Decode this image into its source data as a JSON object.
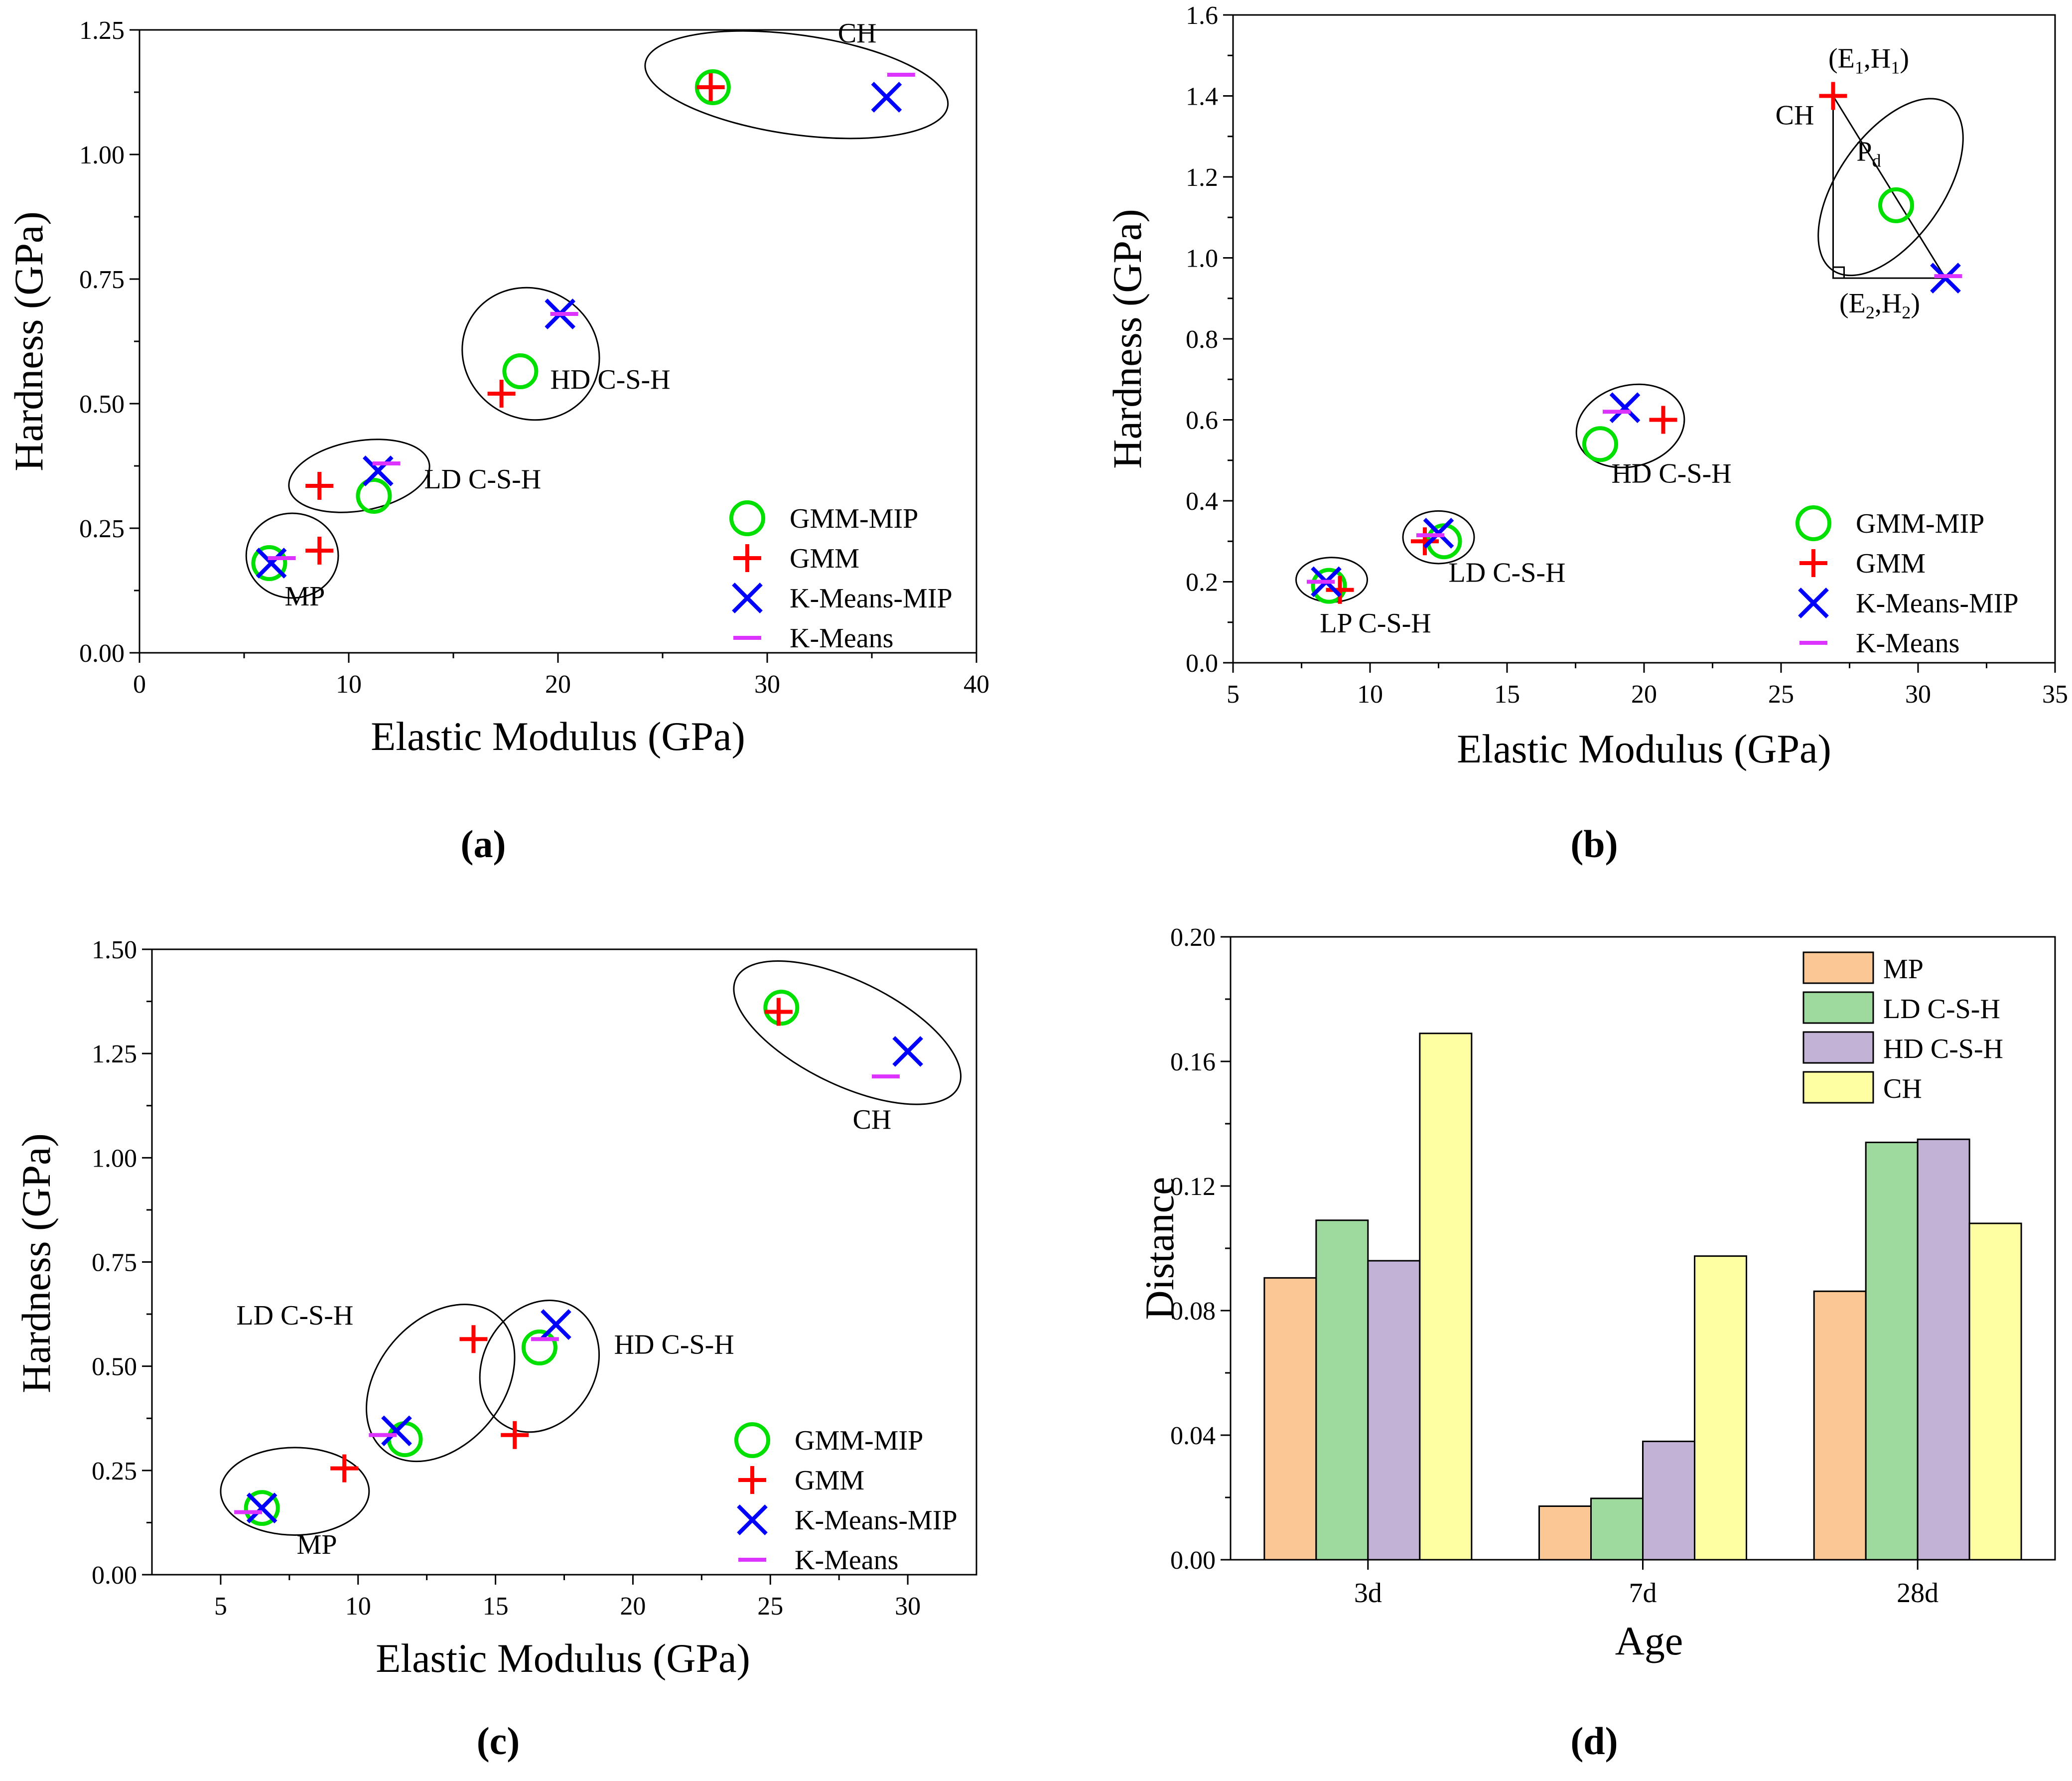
{
  "chart_data": [
    {
      "id": "a",
      "type": "scatter",
      "caption": "(a)",
      "xlabel": "Elastic Modulus (GPa)",
      "ylabel": "Hardness (GPa)",
      "xlim": [
        0,
        40
      ],
      "ylim": [
        0,
        1.25
      ],
      "xticks": [
        0,
        10,
        20,
        30,
        40
      ],
      "yticks": [
        0,
        0.25,
        0.5,
        0.75,
        1.0,
        1.25
      ],
      "ytick_decimals": 2,
      "legend_position": "bottom-right",
      "series": [
        {
          "name": "GMM-MIP",
          "marker": "circle",
          "color": "#00e000",
          "points": [
            [
              6.2,
              0.18
            ],
            [
              11.2,
              0.315
            ],
            [
              18.2,
              0.565
            ],
            [
              27.4,
              1.135
            ]
          ]
        },
        {
          "name": "GMM",
          "marker": "plus",
          "color": "#ff0000",
          "points": [
            [
              8.6,
              0.205
            ],
            [
              8.6,
              0.335
            ],
            [
              17.3,
              0.52
            ],
            [
              27.3,
              1.135
            ]
          ]
        },
        {
          "name": "K-Means-MIP",
          "marker": "x",
          "color": "#0000ff",
          "points": [
            [
              6.3,
              0.18
            ],
            [
              11.4,
              0.365
            ],
            [
              20.1,
              0.68
            ],
            [
              35.7,
              1.115
            ]
          ]
        },
        {
          "name": "K-Means",
          "marker": "dash",
          "color": "#dd33ff",
          "points": [
            [
              6.8,
              0.19
            ],
            [
              11.8,
              0.38
            ],
            [
              20.3,
              0.68
            ],
            [
              36.4,
              1.16
            ]
          ]
        }
      ],
      "ellipses": [
        {
          "cx": 7.3,
          "cy": 0.195,
          "rx": 2.2,
          "ry": 0.085,
          "angle": 0
        },
        {
          "cx": 10.5,
          "cy": 0.355,
          "rx": 3.4,
          "ry": 0.07,
          "angle": -10
        },
        {
          "cx": 18.7,
          "cy": 0.6,
          "rx": 3.1,
          "ry": 0.14,
          "angle": -60
        },
        {
          "cx": 31.4,
          "cy": 1.14,
          "rx": 7.3,
          "ry": 0.1,
          "angle": 8
        }
      ],
      "annotations": [
        {
          "text": "MP",
          "x": 7.9,
          "y": 0.095
        },
        {
          "text": "LD C-S-H",
          "x": 16.4,
          "y": 0.33
        },
        {
          "text": "HD C-S-H",
          "x": 22.5,
          "y": 0.53
        },
        {
          "text": "CH",
          "x": 34.3,
          "y": 1.225
        }
      ]
    },
    {
      "id": "b",
      "type": "scatter",
      "caption": "(b)",
      "xlabel": "Elastic Modulus (GPa)",
      "ylabel": "Hardness (GPa)",
      "xlim": [
        5,
        35
      ],
      "ylim": [
        0,
        1.6
      ],
      "xticks": [
        5,
        10,
        15,
        20,
        25,
        30,
        35
      ],
      "yticks": [
        0,
        0.2,
        0.4,
        0.6,
        0.8,
        1.0,
        1.2,
        1.4,
        1.6
      ],
      "ytick_decimals": 1,
      "legend_position": "bottom-right",
      "series": [
        {
          "name": "GMM-MIP",
          "marker": "circle",
          "color": "#00e000",
          "points": [
            [
              8.5,
              0.19
            ],
            [
              12.7,
              0.3
            ],
            [
              18.4,
              0.54
            ],
            [
              29.2,
              1.13
            ]
          ]
        },
        {
          "name": "GMM",
          "marker": "plus",
          "color": "#ff0000",
          "points": [
            [
              8.9,
              0.18
            ],
            [
              12.0,
              0.3
            ],
            [
              20.7,
              0.6
            ],
            [
              26.9,
              1.4
            ]
          ]
        },
        {
          "name": "K-Means-MIP",
          "marker": "x",
          "color": "#0000ff",
          "points": [
            [
              8.4,
              0.2
            ],
            [
              12.5,
              0.32
            ],
            [
              19.3,
              0.63
            ],
            [
              31.0,
              0.95
            ]
          ]
        },
        {
          "name": "K-Means",
          "marker": "dash",
          "color": "#dd33ff",
          "points": [
            [
              8.2,
              0.2
            ],
            [
              12.2,
              0.315
            ],
            [
              19.0,
              0.62
            ],
            [
              31.1,
              0.955
            ]
          ]
        }
      ],
      "ellipses": [
        {
          "cx": 8.6,
          "cy": 0.205,
          "rx": 1.3,
          "ry": 0.055,
          "angle": 0
        },
        {
          "cx": 12.5,
          "cy": 0.31,
          "rx": 1.3,
          "ry": 0.065,
          "angle": 0
        },
        {
          "cx": 19.5,
          "cy": 0.585,
          "rx": 2.0,
          "ry": 0.1,
          "angle": -15
        },
        {
          "cx": 29.0,
          "cy": 1.175,
          "rx": 3.7,
          "ry": 0.13,
          "angle": -55
        }
      ],
      "triangle": {
        "vertices": [
          [
            26.9,
            1.4
          ],
          [
            26.9,
            0.95
          ],
          [
            31.0,
            0.95
          ]
        ]
      },
      "annotations": [
        {
          "text": "LP C-S-H",
          "x": 10.2,
          "y": 0.075
        },
        {
          "text": "LD C-S-H",
          "x": 15.0,
          "y": 0.2
        },
        {
          "text": "HD C-S-H",
          "x": 21.0,
          "y": 0.445
        },
        {
          "text": "CH",
          "x": 25.5,
          "y": 1.33
        },
        {
          "text": "P",
          "sub": "d",
          "x": 28.2,
          "y": 1.24
        },
        {
          "text": "(E",
          "sub": "1",
          "mid": ",H",
          "sub2": "1",
          "tail": ")",
          "x": 28.2,
          "y": 1.47
        },
        {
          "text": "(E",
          "sub": "2",
          "mid": ",H",
          "sub2": "2",
          "tail": ")",
          "x": 28.6,
          "y": 0.865
        }
      ]
    },
    {
      "id": "c",
      "type": "scatter",
      "caption": "(c)",
      "xlabel": "Elastic Modulus (GPa)",
      "ylabel": "Hardness (GPa)",
      "xlim": [
        2.5,
        32.5
      ],
      "ylim": [
        0,
        1.5
      ],
      "xticks": [
        5,
        10,
        15,
        20,
        25,
        30
      ],
      "yticks": [
        0,
        0.25,
        0.5,
        0.75,
        1.0,
        1.25,
        1.5
      ],
      "ytick_decimals": 2,
      "legend_position": "bottom-right",
      "series": [
        {
          "name": "GMM-MIP",
          "marker": "circle",
          "color": "#00e000",
          "points": [
            [
              6.5,
              0.16
            ],
            [
              11.7,
              0.325
            ],
            [
              16.6,
              0.545
            ],
            [
              25.4,
              1.36
            ]
          ]
        },
        {
          "name": "GMM",
          "marker": "plus",
          "color": "#ff0000",
          "points": [
            [
              9.5,
              0.255
            ],
            [
              14.2,
              0.565
            ],
            [
              15.7,
              0.335
            ],
            [
              25.3,
              1.35
            ]
          ]
        },
        {
          "name": "K-Means-MIP",
          "marker": "x",
          "color": "#0000ff",
          "points": [
            [
              6.5,
              0.16
            ],
            [
              11.4,
              0.345
            ],
            [
              17.2,
              0.6
            ],
            [
              30.0,
              1.255
            ]
          ]
        },
        {
          "name": "K-Means",
          "marker": "dash",
          "color": "#dd33ff",
          "points": [
            [
              6.0,
              0.15
            ],
            [
              10.9,
              0.335
            ],
            [
              16.8,
              0.565
            ],
            [
              29.2,
              1.195
            ]
          ]
        }
      ],
      "ellipses": [
        {
          "cx": 7.7,
          "cy": 0.2,
          "rx": 2.7,
          "ry": 0.105,
          "angle": 0
        },
        {
          "cx": 13.0,
          "cy": 0.46,
          "rx": 3.2,
          "ry": 0.15,
          "angle": -50
        },
        {
          "cx": 16.6,
          "cy": 0.5,
          "rx": 2.5,
          "ry": 0.135,
          "angle": -60
        },
        {
          "cx": 27.8,
          "cy": 1.3,
          "rx": 4.5,
          "ry": 0.125,
          "angle": 26
        }
      ],
      "annotations": [
        {
          "text": "MP",
          "x": 8.5,
          "y": 0.05
        },
        {
          "text": "LD C-S-H",
          "x": 7.7,
          "y": 0.6
        },
        {
          "text": "HD C-S-H",
          "x": 21.5,
          "y": 0.53
        },
        {
          "text": "CH",
          "x": 28.7,
          "y": 1.07
        }
      ]
    },
    {
      "id": "d",
      "type": "bar",
      "caption": "(d)",
      "xlabel": "Age",
      "ylabel": "Distance",
      "ylim": [
        0,
        0.2
      ],
      "yticks": [
        0,
        0.04,
        0.08,
        0.12,
        0.16,
        0.2
      ],
      "ytick_decimals": 2,
      "categories": [
        "3d",
        "7d",
        "28d"
      ],
      "legend_position": "top-right",
      "series": [
        {
          "name": "MP",
          "color": "#fbc795",
          "values": [
            0.0905,
            0.0172,
            0.0862
          ]
        },
        {
          "name": "LD C-S-H",
          "color": "#9ed99e",
          "values": [
            0.109,
            0.0197,
            0.134
          ]
        },
        {
          "name": "HD C-S-H",
          "color": "#c2b2d6",
          "values": [
            0.096,
            0.038,
            0.135
          ]
        },
        {
          "name": "CH",
          "color": "#fefea2",
          "values": [
            0.169,
            0.0975,
            0.108
          ]
        }
      ]
    }
  ]
}
